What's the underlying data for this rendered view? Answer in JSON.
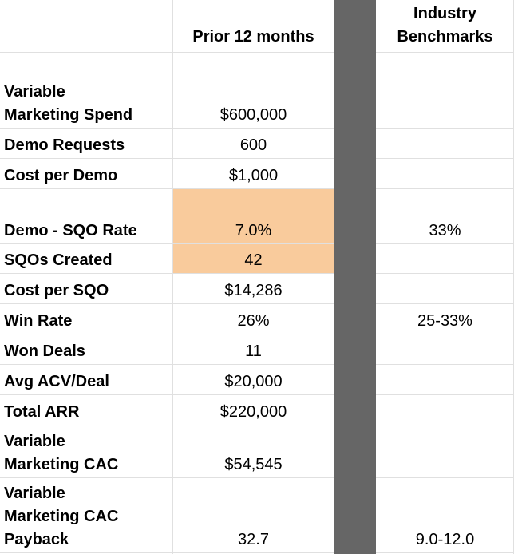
{
  "header": {
    "col_prior": "Prior 12 months",
    "col_bench_line1": "Industry",
    "col_bench_line2": "Benchmarks"
  },
  "rows": [
    {
      "label_line1": "Variable",
      "label_line2": "Marketing Spend",
      "value": "$600,000",
      "benchmark": ""
    },
    {
      "label_line1": "Demo Requests",
      "value": "600",
      "benchmark": ""
    },
    {
      "label_line1": "Cost per Demo",
      "value": "$1,000",
      "benchmark": ""
    },
    {
      "label_line1": "Demo - SQO Rate",
      "value": "7.0%",
      "benchmark": "33%"
    },
    {
      "label_line1": "SQOs Created",
      "value": "42",
      "benchmark": ""
    },
    {
      "label_line1": "Cost per SQO",
      "value": "$14,286",
      "benchmark": ""
    },
    {
      "label_line1": "Win Rate",
      "value": "26%",
      "benchmark": "25-33%"
    },
    {
      "label_line1": "Won Deals",
      "value": "11",
      "benchmark": ""
    },
    {
      "label_line1": "Avg ACV/Deal",
      "value": "$20,000",
      "benchmark": ""
    },
    {
      "label_line1": "Total ARR",
      "value": "$220,000",
      "benchmark": ""
    },
    {
      "label_line1": "Variable",
      "label_line2": "Marketing CAC",
      "value": "$54,545",
      "benchmark": ""
    },
    {
      "label_line1": "Variable",
      "label_line2": "Marketing CAC",
      "label_line3": "Payback",
      "value": "32.7",
      "benchmark": "9.0-12.0"
    }
  ],
  "colors": {
    "highlight": "#f9cb9c",
    "divider": "#666666",
    "gridline": "#e0e0e0"
  }
}
